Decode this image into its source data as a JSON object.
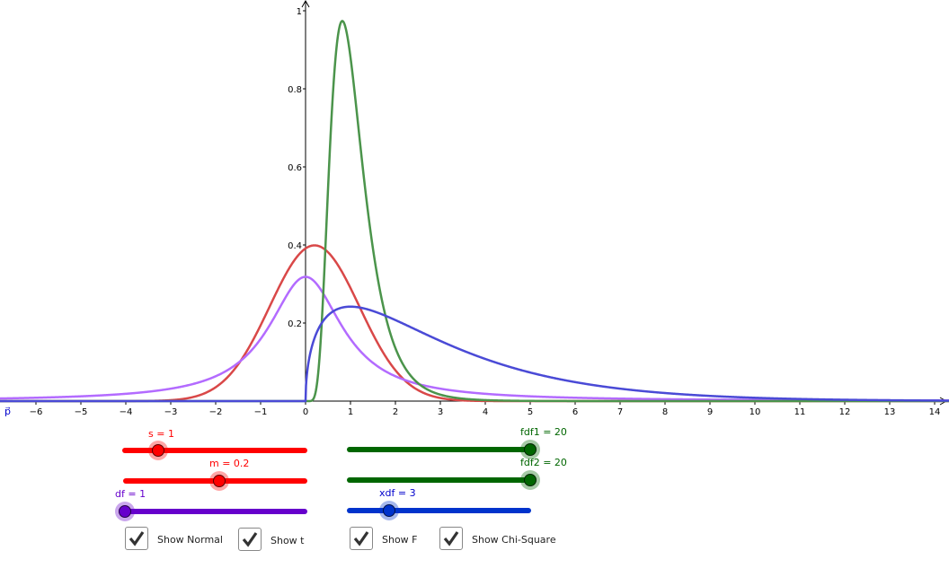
{
  "chart_data": {
    "type": "line",
    "xlim": [
      -6.8,
      14.3
    ],
    "ylim": [
      0,
      1.02
    ],
    "x_ticks": [
      -6,
      -5,
      -4,
      -3,
      -2,
      -1,
      0,
      1,
      2,
      3,
      4,
      5,
      6,
      7,
      8,
      9,
      10,
      11,
      12,
      13,
      14
    ],
    "y_ticks": [
      0.2,
      0.4,
      0.6,
      0.8,
      1
    ],
    "y_tick_labels": [
      "0.2",
      "0.4",
      "0.6",
      "0.8",
      "1"
    ],
    "x_axis_label": "p⃗",
    "grid": false,
    "series": [
      {
        "dist": "normal",
        "params": {
          "m": 0.2,
          "s": 1
        },
        "color": "#d94848"
      },
      {
        "dist": "student-t",
        "params": {
          "df": 1
        },
        "color": "#b36bff"
      },
      {
        "dist": "F",
        "params": {
          "fdf1": 20,
          "fdf2": 20
        },
        "color": "#4b944b"
      },
      {
        "dist": "chi-square",
        "params": {
          "xdf": 3
        },
        "color": "#4a4ad6"
      }
    ]
  },
  "sliders": {
    "s": {
      "label": "s = 1",
      "value": 1,
      "color": "#ff0000"
    },
    "m": {
      "label": "m = 0.2",
      "value": 0.2,
      "color": "#ff0000"
    },
    "df": {
      "label": "df = 1",
      "value": 1,
      "color": "#6600cc"
    },
    "fdf1": {
      "label": "fdf1 = 20",
      "value": 20,
      "color": "#006600"
    },
    "fdf2": {
      "label": "fdf2 = 20",
      "value": 20,
      "color": "#006600"
    },
    "xdf": {
      "label": "xdf = 3",
      "value": 3,
      "color": "#0033cc"
    }
  },
  "checkboxes": [
    {
      "label": "Show Normal",
      "checked": true
    },
    {
      "label": "Show t",
      "checked": true
    },
    {
      "label": "Show F",
      "checked": true
    },
    {
      "label": "Show Chi-Square",
      "checked": true
    }
  ]
}
